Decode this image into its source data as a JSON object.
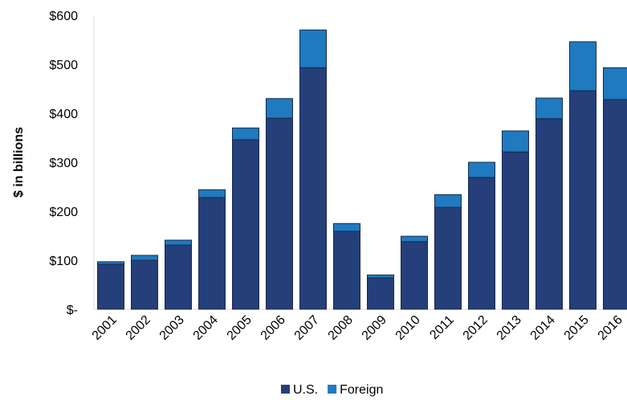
{
  "chart_data": {
    "type": "bar",
    "stacked": true,
    "y_label": "$ in billions",
    "categories": [
      "2001",
      "2002",
      "2003",
      "2004",
      "2005",
      "2006",
      "2007",
      "2008",
      "2009",
      "2010",
      "2011",
      "2012",
      "2013",
      "2014",
      "2015",
      "2016"
    ],
    "series": [
      {
        "name": "U.S.",
        "color": "#243f7a",
        "values": [
          92,
          100,
          131,
          228,
          346,
          390,
          493,
          159,
          64,
          138,
          208,
          269,
          321,
          389,
          446,
          428
        ]
      },
      {
        "name": "Foreign",
        "color": "#1f7ac0",
        "values": [
          5,
          10,
          10,
          16,
          24,
          40,
          77,
          16,
          6,
          11,
          26,
          31,
          43,
          42,
          100,
          65
        ]
      }
    ],
    "ylim": [
      0,
      600
    ],
    "yticks": [
      {
        "value": 0,
        "label": "$-"
      },
      {
        "value": 100,
        "label": "$100"
      },
      {
        "value": 200,
        "label": "$200"
      },
      {
        "value": 300,
        "label": "$300"
      },
      {
        "value": 400,
        "label": "$400"
      },
      {
        "value": 500,
        "label": "$500"
      },
      {
        "value": 600,
        "label": "$600"
      }
    ],
    "legend": "bottom"
  }
}
